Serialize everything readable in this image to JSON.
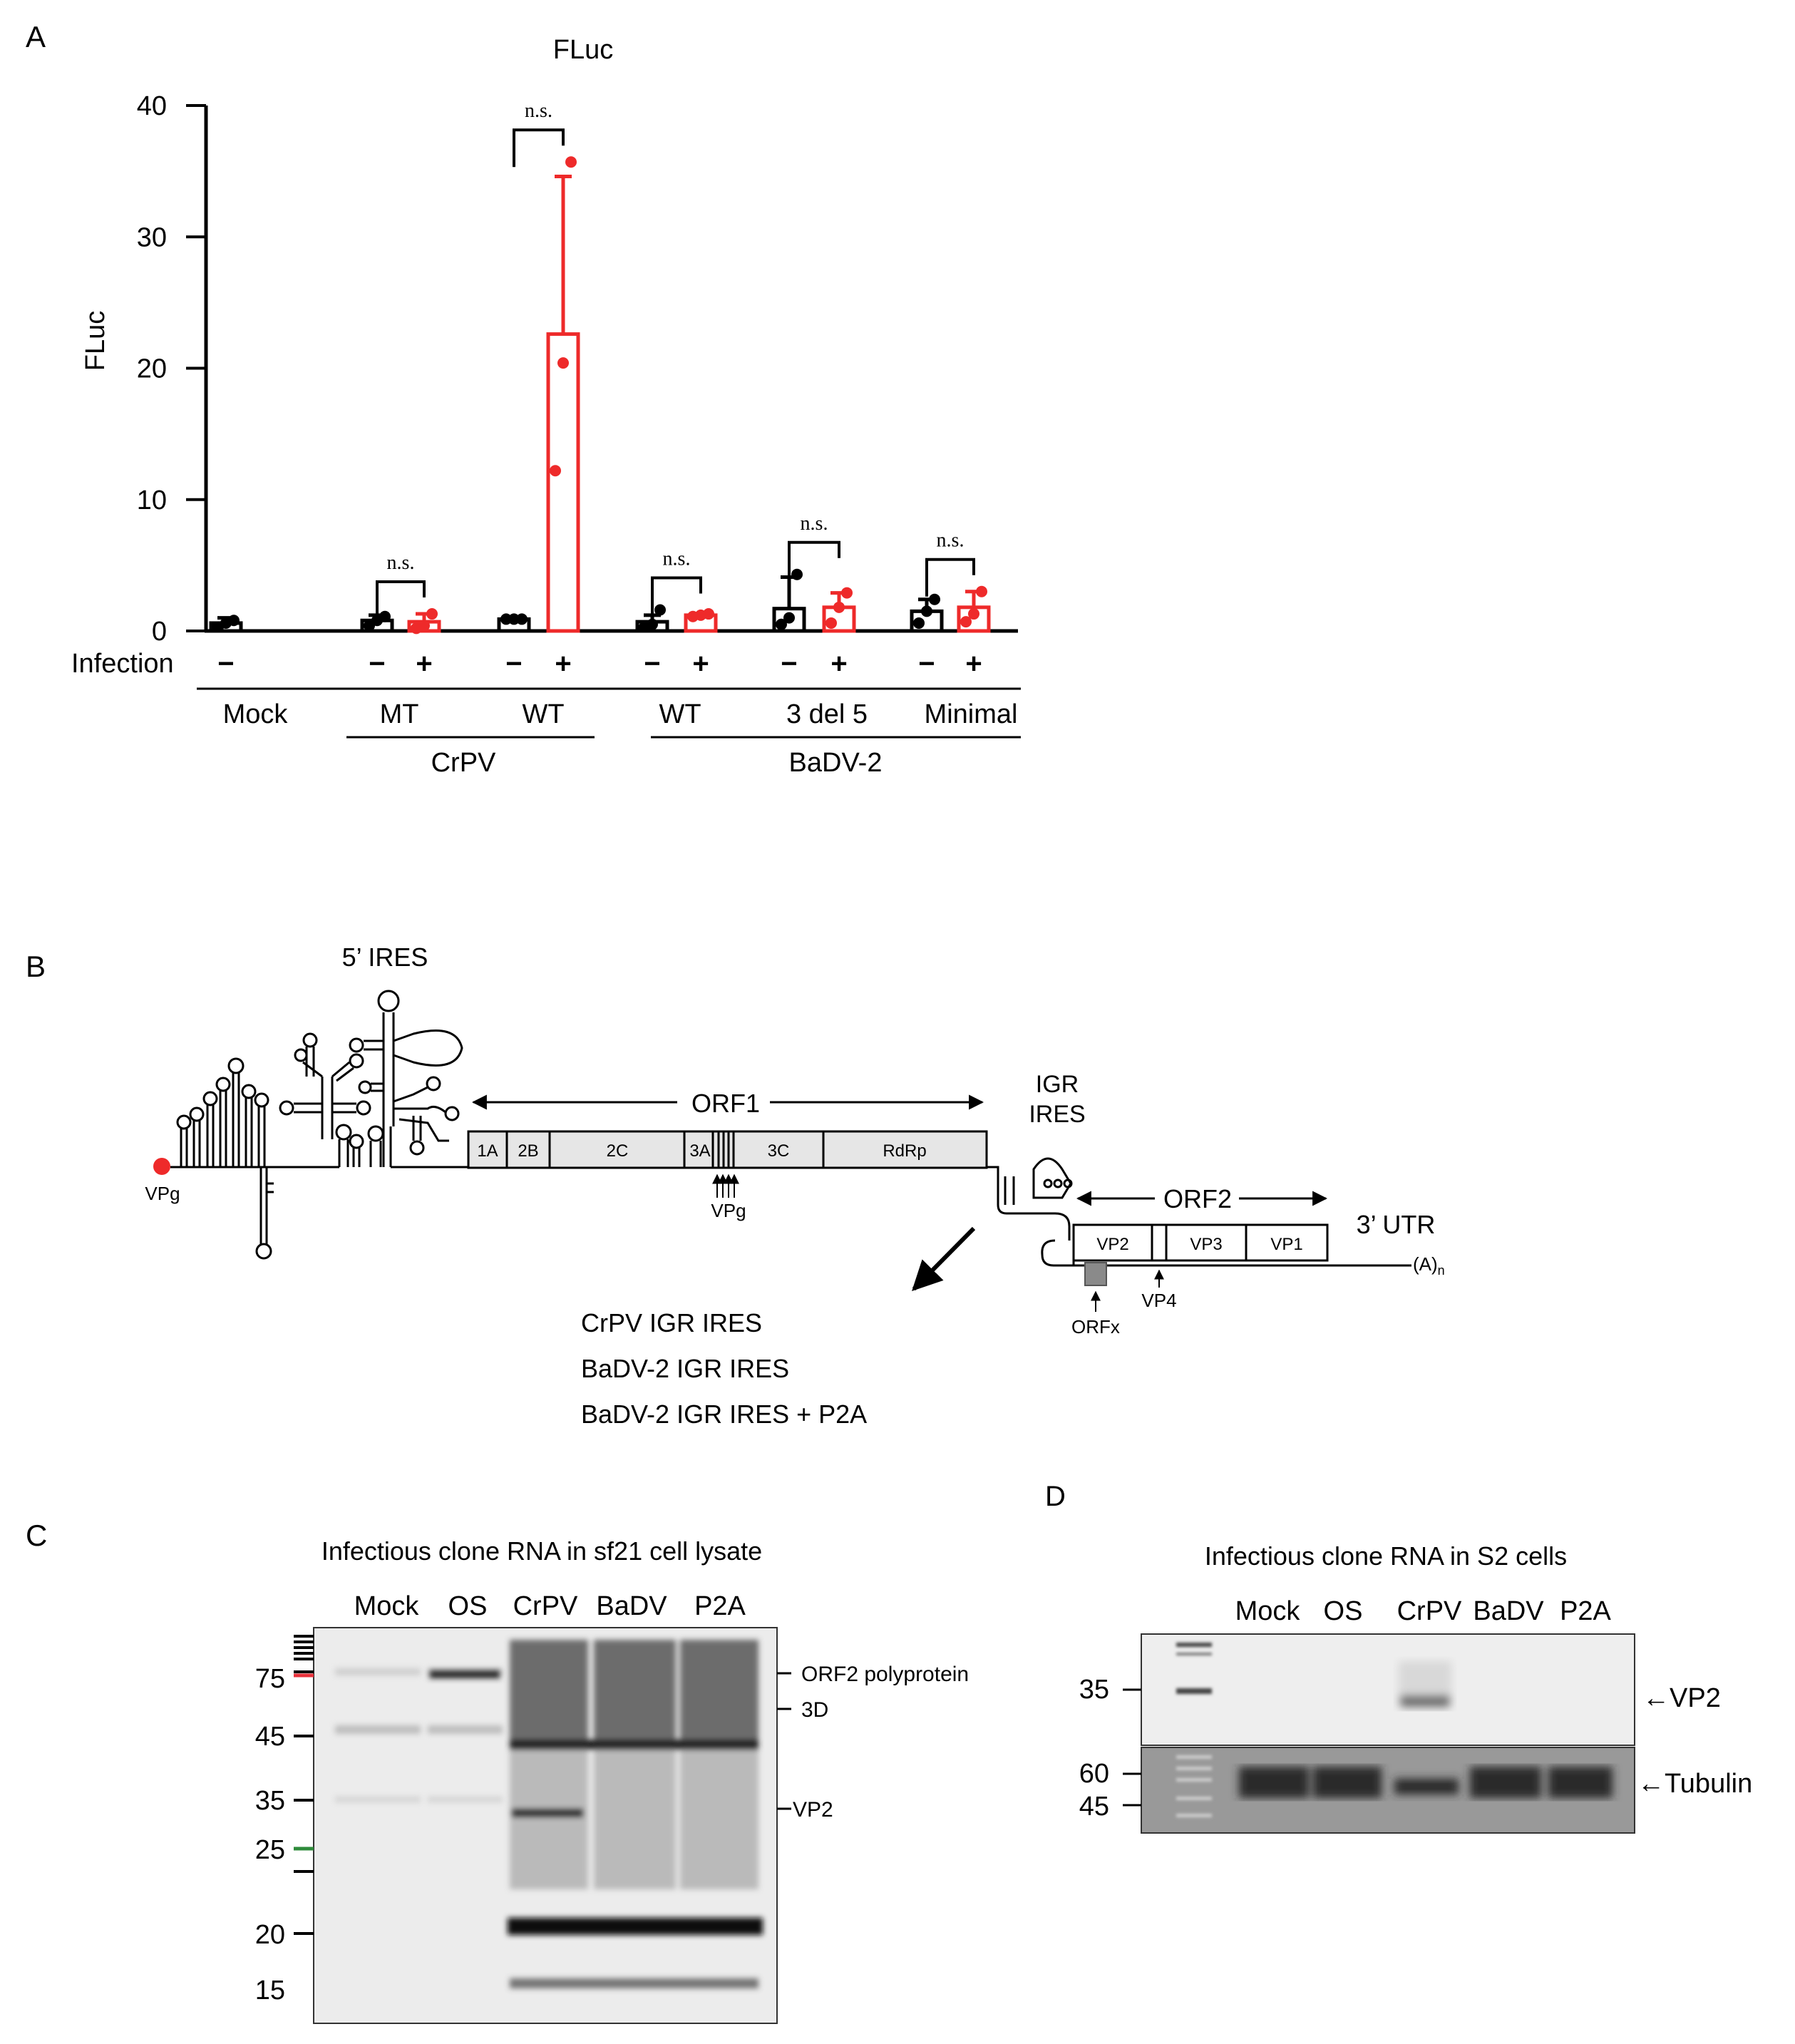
{
  "panels": {
    "a": "A",
    "b": "B",
    "c": "C",
    "d": "D"
  },
  "panel_a": {
    "chart_data": {
      "type": "bar",
      "title": "FLuc",
      "ylabel": "FLuc",
      "ylim": [
        0,
        40
      ],
      "yticks": [
        "0",
        "10",
        "20",
        "30",
        "40"
      ],
      "row_label": "Infection",
      "bars": [
        {
          "id": "mock-minus",
          "sign": "−",
          "infected": false,
          "mean": 0.6,
          "err": 0.4,
          "points": [
            0.3,
            0.6,
            0.8
          ]
        },
        {
          "id": "crpv-mt-minus",
          "sign": "−",
          "infected": false,
          "mean": 0.8,
          "err": 0.4,
          "points": [
            0.4,
            0.8,
            1.1
          ]
        },
        {
          "id": "crpv-mt-plus",
          "sign": "+",
          "infected": true,
          "mean": 0.7,
          "err": 0.6,
          "points": [
            0.2,
            0.4,
            1.3
          ]
        },
        {
          "id": "crpv-wt-minus",
          "sign": "−",
          "infected": false,
          "mean": 0.9,
          "err": 0.1,
          "points": [
            0.9,
            0.9,
            0.9
          ]
        },
        {
          "id": "crpv-wt-plus",
          "sign": "+",
          "infected": true,
          "mean": 22.6,
          "err": 12.0,
          "points": [
            12.2,
            20.4,
            35.7
          ]
        },
        {
          "id": "badv-wt-minus",
          "sign": "−",
          "infected": false,
          "mean": 0.7,
          "err": 0.5,
          "points": [
            0.3,
            0.5,
            1.6
          ]
        },
        {
          "id": "badv-wt-plus",
          "sign": "+",
          "infected": true,
          "mean": 1.2,
          "err": 0.1,
          "points": [
            1.1,
            1.2,
            1.3
          ]
        },
        {
          "id": "badv-3del5-minus",
          "sign": "−",
          "infected": false,
          "mean": 1.7,
          "err": 2.4,
          "points": [
            0.5,
            1.0,
            4.3
          ]
        },
        {
          "id": "badv-3del5-plus",
          "sign": "+",
          "infected": true,
          "mean": 1.8,
          "err": 1.1,
          "points": [
            0.6,
            1.8,
            2.9
          ]
        },
        {
          "id": "badv-minimal-minus",
          "sign": "−",
          "infected": false,
          "mean": 1.5,
          "err": 0.9,
          "points": [
            0.6,
            1.5,
            2.4
          ]
        },
        {
          "id": "badv-minimal-plus",
          "sign": "+",
          "infected": true,
          "mean": 1.8,
          "err": 1.2,
          "points": [
            0.7,
            1.3,
            3.0
          ]
        }
      ],
      "significance": [
        {
          "label": "n.s.",
          "from": "crpv-mt-minus",
          "to": "crpv-mt-plus"
        },
        {
          "label": "n.s.",
          "from": "crpv-wt-minus",
          "to": "crpv-wt-plus"
        },
        {
          "label": "n.s.",
          "from": "badv-wt-minus",
          "to": "badv-wt-plus"
        },
        {
          "label": "n.s.",
          "from": "badv-3del5-minus",
          "to": "badv-3del5-plus"
        },
        {
          "label": "n.s.",
          "from": "badv-minimal-minus",
          "to": "badv-minimal-plus"
        }
      ],
      "groups": [
        "Mock",
        "MT",
        "WT",
        "WT",
        "3 del 5",
        "Minimal"
      ],
      "supergroups": [
        "CrPV",
        "BaDV-2"
      ],
      "colors": {
        "uninfected": "#000000",
        "infected": "#ee2a2a"
      }
    }
  },
  "panel_b": {
    "labels": {
      "ires5": "5’ IRES",
      "orf1": "ORF1",
      "igr_line1": "IGR",
      "igr_line2": "IRES",
      "orf2": "ORF2",
      "utr3": "3’ UTR",
      "vpg_left": "VPg",
      "vpg_mid": "VPg",
      "orfx": "ORFx",
      "vp4": "VP4",
      "polya": "(A)",
      "polya_sub": "n"
    },
    "orf1_segments": [
      "1A",
      "2B",
      "2C",
      "3A",
      "3C",
      "RdRp"
    ],
    "orf2_segments": [
      "VP2",
      "VP3",
      "VP1"
    ],
    "constructs": [
      "CrPV IGR IRES",
      "BaDV-2 IGR IRES",
      "BaDV-2 IGR IRES + P2A"
    ],
    "colors": {
      "vpg": "#ee2a2a",
      "box": "#e6e6e6"
    }
  },
  "panel_c": {
    "title": "Infectious clone RNA in sf21 cell lysate",
    "lanes": [
      "Mock",
      "OS",
      "CrPV",
      "BaDV",
      "P2A"
    ],
    "markers": [
      "75",
      "45",
      "35",
      "25",
      "20",
      "15"
    ],
    "bands": [
      "ORF2 polyprotein",
      "3D",
      "VP2"
    ],
    "colors": {
      "marker75": "#e8303a",
      "marker25": "#2e8b3a"
    }
  },
  "panel_d": {
    "title": "Infectious clone RNA in S2 cells",
    "lanes": [
      "Mock",
      "OS",
      "CrPV",
      "BaDV",
      "P2A"
    ],
    "markers_top": [
      "35"
    ],
    "markers_bottom": [
      "60",
      "45"
    ],
    "bands": [
      "←VP2",
      "←Tubulin"
    ]
  }
}
